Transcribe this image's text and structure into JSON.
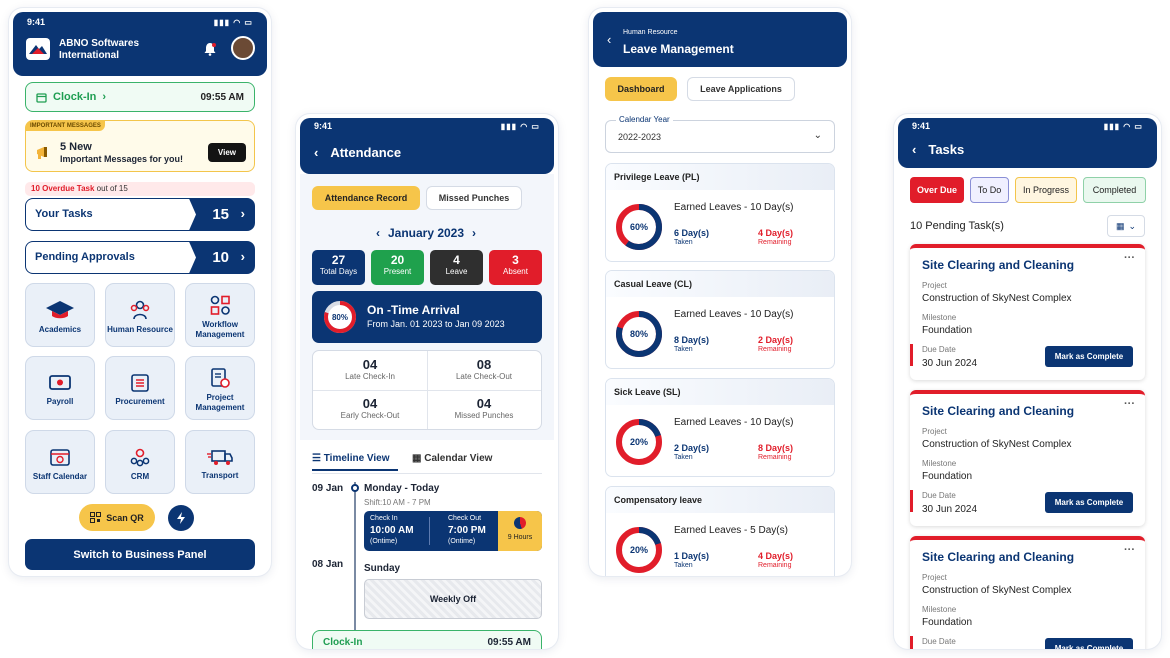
{
  "status_time": "9:41",
  "home": {
    "company": "ABNO Softwares",
    "company_line2": "International",
    "clock_in": "Clock-In",
    "clock_time": "09:55 AM",
    "messages_tag": "IMPORTANT MESSAGES",
    "messages_count": "5 New",
    "messages_text": "Important Messages for you!",
    "view_label": "View",
    "overdue_count": "10 Overdue Task",
    "overdue_rest": " out of 15",
    "your_tasks_label": "Your Tasks",
    "your_tasks_count": "15",
    "pending_label": "Pending Approvals",
    "pending_count": "10",
    "tiles": [
      "Academics",
      "Human Resource",
      "Workflow Management",
      "Payroll",
      "Procurement",
      "Project Management",
      "Staff Calendar",
      "CRM",
      "Transport"
    ],
    "scan_label": "Scan QR",
    "switch_label": "Switch to Business Panel"
  },
  "attendance": {
    "title": "Attendance",
    "tab_record": "Attendance Record",
    "tab_missed": "Missed Punches",
    "month": "January 2023",
    "stats": [
      {
        "value": "27",
        "label": "Total Days",
        "color": "#0b3573"
      },
      {
        "value": "20",
        "label": "Present",
        "color": "#1fa14d"
      },
      {
        "value": "4",
        "label": "Leave",
        "color": "#2f2f2f"
      },
      {
        "value": "3",
        "label": "Absent",
        "color": "#e11d2a"
      }
    ],
    "arrival_pct": "80%",
    "arrival_fraction": 0.8,
    "arrival_title": "On -Time Arrival",
    "arrival_range": "From Jan. 01 2023 to Jan 09 2023",
    "grid": [
      {
        "value": "04",
        "label": "Late Check-In"
      },
      {
        "value": "08",
        "label": "Late Check-Out"
      },
      {
        "value": "04",
        "label": "Early Check-Out"
      },
      {
        "value": "04",
        "label": "Missed Punches"
      }
    ],
    "view_timeline": "Timeline View",
    "view_calendar": "Calendar View",
    "day1_date": "09 Jan",
    "day1_title": "Monday - Today",
    "day1_shift": "Shift:10 AM - 7 PM",
    "checkin_label": "Check In",
    "checkin_time": "10:00 AM",
    "checkin_note": "(Ontime)",
    "checkout_label": "Check Out",
    "checkout_time": "7:00 PM",
    "checkout_note": "(Ontime)",
    "hours": "9 Hours",
    "day2_date": "08 Jan",
    "day2_title": "Sunday",
    "weekly_off": "Weekly Off",
    "bottom_clock": "Clock-In",
    "bottom_time": "09:55 AM"
  },
  "leave": {
    "subtitle": "Human Resource",
    "title": "Leave Management",
    "tab_dashboard": "Dashboard",
    "tab_applications": "Leave Applications",
    "year_label": "Calendar Year",
    "year_value": "2022-2023",
    "cards": [
      {
        "name": "Privilege Leave (PL)",
        "earned": "Earned Leaves - 10 Day(s)",
        "pct": "60%",
        "fraction": 0.6,
        "taken": "6 Day(s)",
        "remaining": "4 Day(s)"
      },
      {
        "name": "Casual Leave (CL)",
        "earned": "Earned Leaves - 10 Day(s)",
        "pct": "80%",
        "fraction": 0.8,
        "taken": "8 Day(s)",
        "remaining": "2 Day(s)"
      },
      {
        "name": "Sick Leave (SL)",
        "earned": "Earned Leaves - 10 Day(s)",
        "pct": "20%",
        "fraction": 0.2,
        "taken": "2 Day(s)",
        "remaining": "8 Day(s)"
      },
      {
        "name": "Compensatory leave",
        "earned": "Earned Leaves - 5 Day(s)",
        "pct": "20%",
        "fraction": 0.2,
        "taken": "1 Day(s)",
        "remaining": "4 Day(s)"
      }
    ],
    "taken_label": "Taken",
    "remaining_label": "Remaining"
  },
  "tasks": {
    "title": "Tasks",
    "filters": [
      "Over Due",
      "To Do",
      "In Progress",
      "Completed"
    ],
    "pending": "10 Pending Task(s)",
    "cards": [
      {
        "title": "Site Clearing and Cleaning",
        "project": "Construction of SkyNest Complex",
        "milestone": "Foundation",
        "due": "30 Jun 2024"
      },
      {
        "title": "Site Clearing and Cleaning",
        "project": "Construction of SkyNest Complex",
        "milestone": "Foundation",
        "due": "30 Jun 2024"
      },
      {
        "title": "Site Clearing and Cleaning",
        "project": "Construction of SkyNest Complex",
        "milestone": "Foundation",
        "due": ""
      }
    ],
    "project_label": "Project",
    "milestone_label": "Milestone",
    "due_label": "Due Date",
    "mark_label": "Mark as Complete"
  }
}
